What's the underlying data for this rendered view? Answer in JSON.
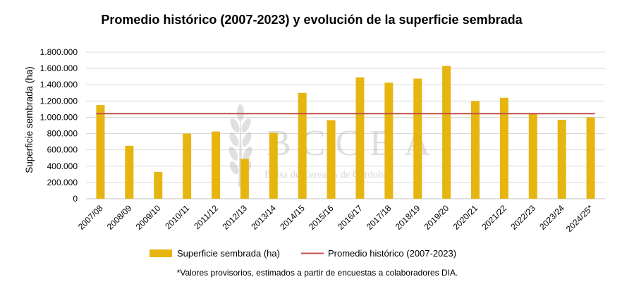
{
  "chart_data": {
    "type": "bar",
    "title": "Promedio histórico (2007-2023) y evolución de la superficie sembrada",
    "xlabel": "",
    "ylabel": "Superficie sembrada (ha)",
    "ylim": [
      0,
      1800000
    ],
    "yticks": [
      "0",
      "200.000",
      "400.000",
      "600.000",
      "800.000",
      "1.000.000",
      "1.200.000",
      "1.400.000",
      "1.600.000",
      "1.800.000"
    ],
    "ytick_values": [
      0,
      200000,
      400000,
      600000,
      800000,
      1000000,
      1200000,
      1400000,
      1600000,
      1800000
    ],
    "grid": true,
    "legend_position": "bottom",
    "categories": [
      "2007/08",
      "2008/09",
      "2009/10",
      "2010/11",
      "2011/12",
      "2012/13",
      "2013/14",
      "2014/15",
      "2015/16",
      "2016/17",
      "2017/18",
      "2018/19",
      "2019/20",
      "2020/21",
      "2021/22",
      "2022/23",
      "2023/24",
      "2024/25*"
    ],
    "series": [
      {
        "name": "Superficie sembrada (ha)",
        "type": "bar",
        "color": "#E6B50F",
        "values": [
          1150000,
          650000,
          330000,
          800000,
          825000,
          490000,
          810000,
          1300000,
          965000,
          1490000,
          1425000,
          1475000,
          1630000,
          1200000,
          1240000,
          1040000,
          970000,
          1000000
        ]
      },
      {
        "name": "Promedio histórico (2007-2023)",
        "type": "line",
        "color": "#C0504D",
        "value": 1045000
      }
    ],
    "footnote": "*Valores provisorios, estimados a partir de encuestas a colaboradores DIA."
  },
  "watermark": {
    "logo_text": "BCCBA",
    "subtitle": "Bolsa de Cereales de Córdoba"
  }
}
